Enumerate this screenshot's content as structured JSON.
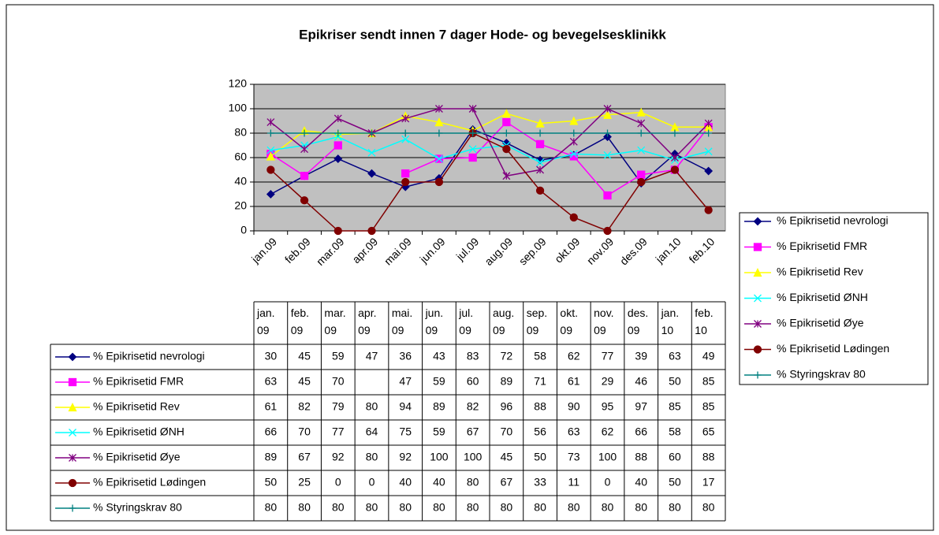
{
  "chart_data": {
    "type": "line",
    "title": "Epikriser sendt innen 7 dager Hode- og bevegelsesklinikk",
    "categories": [
      "jan.09",
      "feb.09",
      "mar.09",
      "apr.09",
      "mai.09",
      "jun.09",
      "jul.09",
      "aug.09",
      "sep.09",
      "okt.09",
      "nov.09",
      "des.09",
      "jan.10",
      "feb.10"
    ],
    "series": [
      {
        "name": "% Epikrisetid nevrologi",
        "color": "#000080",
        "marker": "diamond",
        "values": [
          30,
          45,
          59,
          47,
          36,
          43,
          83,
          72,
          58,
          62,
          77,
          39,
          63,
          49
        ]
      },
      {
        "name": "% Epikrisetid FMR",
        "color": "#ff00ff",
        "marker": "square",
        "values": [
          63,
          45,
          70,
          null,
          47,
          59,
          60,
          89,
          71,
          61,
          29,
          46,
          50,
          85
        ]
      },
      {
        "name": "% Epikrisetid Rev",
        "color": "#ffff00",
        "marker": "triangle",
        "values": [
          61,
          82,
          79,
          80,
          94,
          89,
          82,
          96,
          88,
          90,
          95,
          97,
          85,
          85
        ]
      },
      {
        "name": "% Epikrisetid ØNH",
        "color": "#00ffff",
        "marker": "x",
        "values": [
          66,
          70,
          77,
          64,
          75,
          59,
          67,
          70,
          56,
          63,
          62,
          66,
          58,
          65
        ]
      },
      {
        "name": "% Epikrisetid Øye",
        "color": "#800080",
        "marker": "star",
        "values": [
          89,
          67,
          92,
          80,
          92,
          100,
          100,
          45,
          50,
          73,
          100,
          88,
          60,
          88
        ]
      },
      {
        "name": "% Epikrisetid Lødingen",
        "color": "#800000",
        "marker": "circle",
        "values": [
          50,
          25,
          0,
          0,
          40,
          40,
          80,
          67,
          33,
          11,
          0,
          40,
          50,
          17
        ]
      },
      {
        "name": "% Styringskrav 80",
        "color": "#008080",
        "marker": "plus",
        "values": [
          80,
          80,
          80,
          80,
          80,
          80,
          80,
          80,
          80,
          80,
          80,
          80,
          80,
          80
        ]
      }
    ],
    "ylim": [
      0,
      120
    ],
    "yticks": [
      0,
      20,
      40,
      60,
      80,
      100,
      120
    ],
    "grid": true,
    "plot_background": "#c0c0c0",
    "legend": "right",
    "data_table": true
  }
}
